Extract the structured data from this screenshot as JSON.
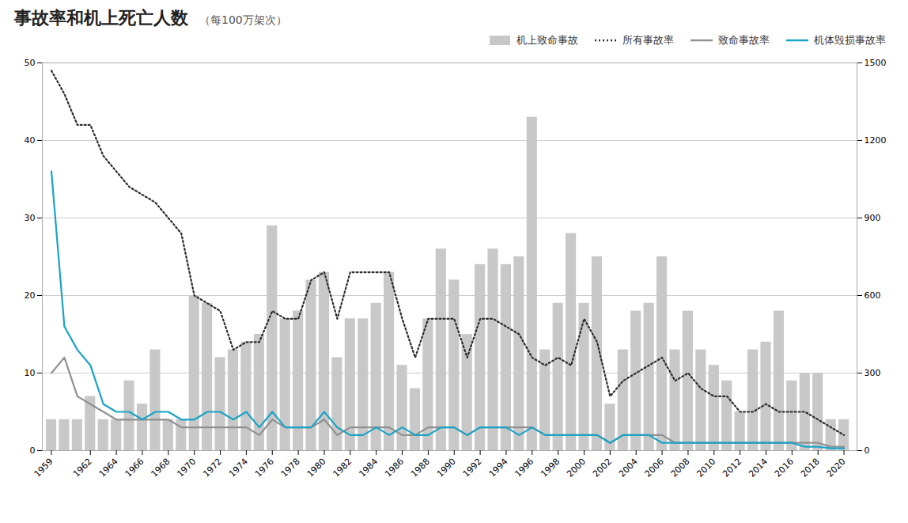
{
  "chart_data": {
    "type": "combo",
    "title": "事故率和机上死亡人数",
    "subtitle": "（每100万架次）",
    "x": [
      1959,
      1960,
      1961,
      1962,
      1963,
      1964,
      1965,
      1966,
      1967,
      1968,
      1969,
      1970,
      1971,
      1972,
      1973,
      1974,
      1975,
      1976,
      1977,
      1978,
      1979,
      1980,
      1981,
      1982,
      1983,
      1984,
      1985,
      1986,
      1987,
      1988,
      1989,
      1990,
      1991,
      1992,
      1993,
      1994,
      1995,
      1996,
      1997,
      1998,
      1999,
      2000,
      2001,
      2002,
      2003,
      2004,
      2005,
      2006,
      2007,
      2008,
      2009,
      2010,
      2011,
      2012,
      2013,
      2014,
      2015,
      2016,
      2017,
      2018,
      2019,
      2020
    ],
    "xlim": [
      1958.3,
      2021.0
    ],
    "xticks": [
      1959,
      1962,
      1964,
      1966,
      1968,
      1970,
      1972,
      1974,
      1976,
      1978,
      1980,
      1982,
      1984,
      1986,
      1988,
      1990,
      1992,
      1994,
      1996,
      1998,
      2000,
      2002,
      2004,
      2006,
      2008,
      2010,
      2012,
      2014,
      2016,
      2018,
      2020
    ],
    "ylim": [
      0,
      50
    ],
    "yticks": [
      0,
      10,
      20,
      30,
      40,
      50
    ],
    "y2lim": [
      0,
      1500
    ],
    "y2ticks": [
      0,
      300,
      600,
      900,
      1200,
      1500
    ],
    "grid": true,
    "legend": "upper right",
    "series": [
      {
        "name": "机上致命事故",
        "type": "bar",
        "axis": "y2",
        "color": "#c8c8c8",
        "values": [
          120,
          120,
          120,
          210,
          120,
          120,
          270,
          180,
          390,
          120,
          120,
          600,
          570,
          360,
          390,
          420,
          450,
          870,
          510,
          540,
          660,
          690,
          360,
          510,
          510,
          570,
          690,
          330,
          240,
          510,
          780,
          660,
          450,
          720,
          780,
          720,
          750,
          1290,
          390,
          570,
          840,
          570,
          750,
          180,
          390,
          540,
          570,
          750,
          390,
          540,
          390,
          330,
          270,
          150,
          390,
          420,
          540,
          270,
          300,
          300,
          120,
          120
        ]
      },
      {
        "name": "所有事故率",
        "type": "line",
        "axis": "y",
        "color": "#2b2b2b",
        "line_style": "dotted",
        "values": [
          49,
          46,
          42,
          42,
          38,
          36,
          34,
          33,
          32,
          30,
          28,
          20,
          19,
          18,
          13,
          14,
          14,
          18,
          17,
          17,
          22,
          23,
          17,
          23,
          23,
          23,
          23,
          17,
          12,
          17,
          17,
          17,
          12,
          17,
          17,
          16,
          15,
          12,
          11,
          12,
          11,
          17,
          14,
          7,
          9,
          10,
          11,
          12,
          9,
          10,
          8,
          7,
          7,
          5,
          5,
          6,
          5,
          5,
          5,
          4,
          3,
          2
        ]
      },
      {
        "name": "致命事故率",
        "type": "line",
        "axis": "y",
        "color": "#909090",
        "line_style": "solid",
        "values": [
          10,
          12,
          7,
          6,
          5,
          4,
          4,
          4,
          4,
          4,
          3,
          3,
          3,
          3,
          3,
          3,
          2,
          4,
          3,
          3,
          3,
          4,
          2,
          3,
          3,
          3,
          3,
          2,
          2,
          3,
          3,
          3,
          2,
          3,
          3,
          3,
          3,
          3,
          2,
          2,
          2,
          2,
          2,
          1,
          2,
          2,
          2,
          2,
          1,
          1,
          1,
          1,
          1,
          1,
          1,
          1,
          1,
          1,
          1,
          1,
          0.5,
          0.5
        ]
      },
      {
        "name": "机体毁损事故率",
        "type": "line",
        "axis": "y",
        "color": "#1ba3c6",
        "line_style": "solid",
        "values": [
          36,
          16,
          13,
          11,
          6,
          5,
          5,
          4,
          5,
          5,
          4,
          4,
          5,
          5,
          4,
          5,
          3,
          5,
          3,
          3,
          3,
          5,
          3,
          2,
          2,
          3,
          2,
          3,
          2,
          2,
          3,
          3,
          2,
          3,
          3,
          3,
          2,
          3,
          2,
          2,
          2,
          2,
          2,
          1,
          2,
          2,
          2,
          1,
          1,
          1,
          1,
          1,
          1,
          1,
          1,
          1,
          1,
          1,
          0.5,
          0.5,
          0.3,
          0.3
        ]
      }
    ]
  }
}
